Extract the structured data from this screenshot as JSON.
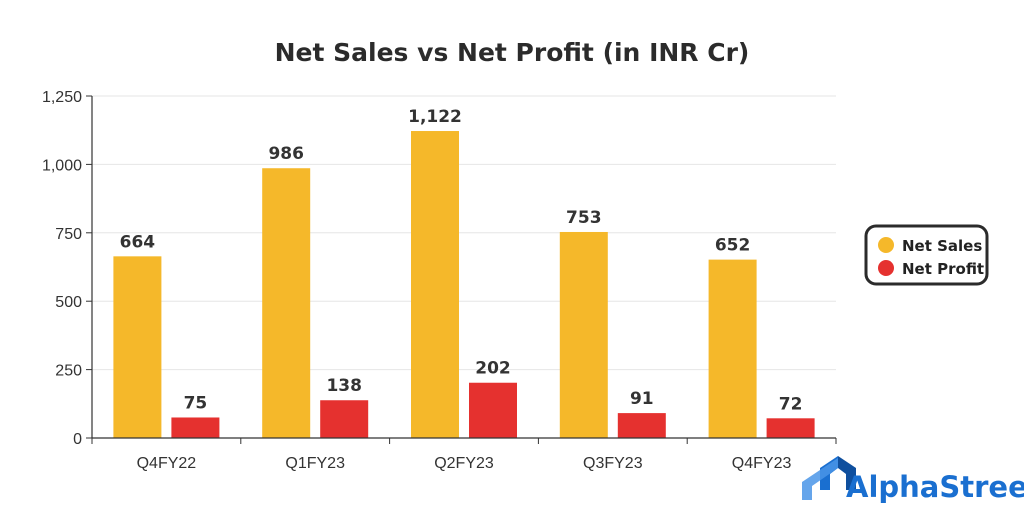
{
  "colors": {
    "net_sales": "#F5B82A",
    "net_profit": "#E5312F",
    "grid": "#e6e6e6",
    "axis": "#333333",
    "brand": "#1a6fd0"
  },
  "brand": {
    "name": "AlphaStreet",
    "icon": "alphastreet-logo-icon"
  },
  "chart_data": {
    "type": "bar",
    "title": "Net Sales vs Net Profit (in INR Cr)",
    "categories": [
      "Q4FY22",
      "Q1FY23",
      "Q2FY23",
      "Q3FY23",
      "Q4FY23"
    ],
    "series": [
      {
        "name": "Net Sales",
        "values": [
          664,
          986,
          1122,
          753,
          652
        ],
        "labels": [
          "664",
          "986",
          "1,122",
          "753",
          "652"
        ]
      },
      {
        "name": "Net Profit",
        "values": [
          75,
          138,
          202,
          91,
          72
        ],
        "labels": [
          "75",
          "138",
          "202",
          "91",
          "72"
        ]
      }
    ],
    "yticks": [
      0,
      250,
      500,
      750,
      1000,
      1250
    ],
    "ytick_labels": [
      "0",
      "250",
      "500",
      "750",
      "1,000",
      "1,250"
    ],
    "ylim": [
      0,
      1250
    ],
    "xlabel": "",
    "ylabel": "",
    "grid": true,
    "legend_position": "right"
  }
}
